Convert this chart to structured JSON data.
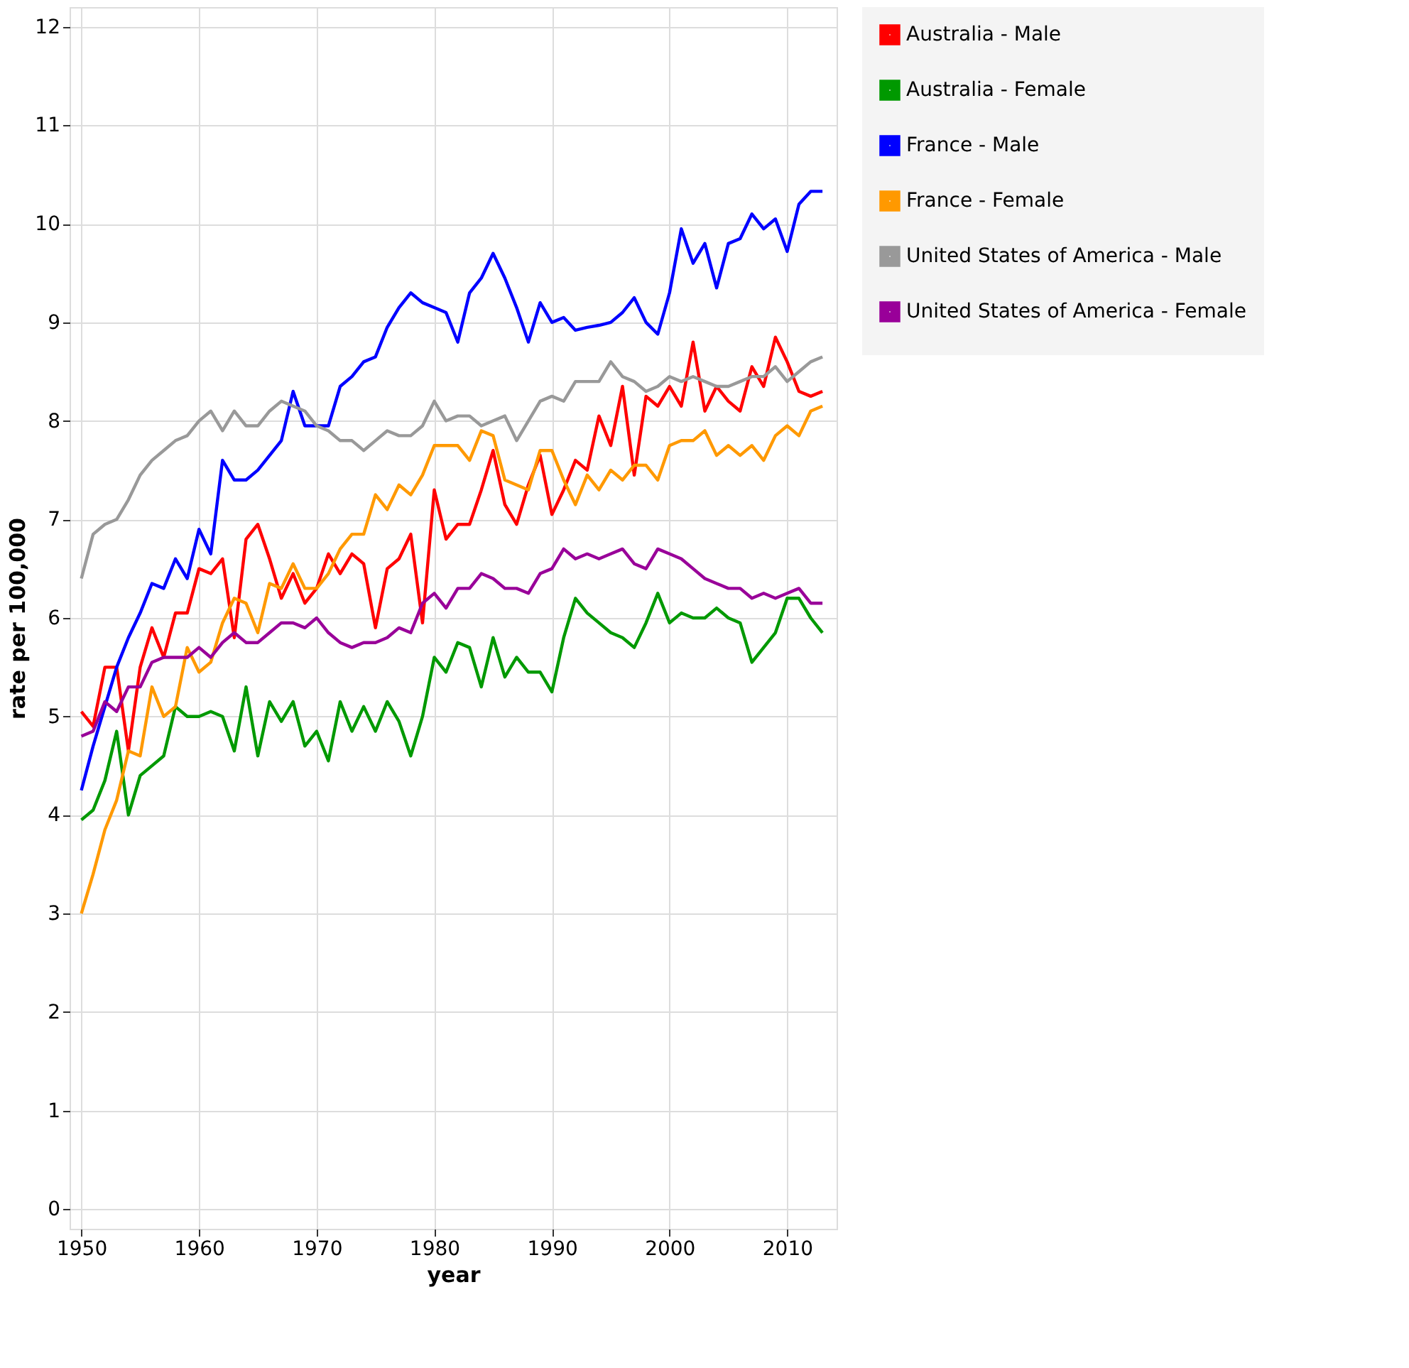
{
  "chart_data": {
    "type": "line",
    "xlabel": "year",
    "ylabel": "rate per 100,000",
    "x": [
      1950,
      1951,
      1952,
      1953,
      1954,
      1955,
      1956,
      1957,
      1958,
      1959,
      1960,
      1961,
      1962,
      1963,
      1964,
      1965,
      1966,
      1967,
      1968,
      1969,
      1970,
      1971,
      1972,
      1973,
      1974,
      1975,
      1976,
      1977,
      1978,
      1979,
      1980,
      1981,
      1982,
      1983,
      1984,
      1985,
      1986,
      1987,
      1988,
      1989,
      1990,
      1991,
      1992,
      1993,
      1994,
      1995,
      1996,
      1997,
      1998,
      1999,
      2000,
      2001,
      2002,
      2003,
      2004,
      2005,
      2006,
      2007,
      2008,
      2009,
      2010,
      2011,
      2012,
      2013
    ],
    "xlim": [
      1949,
      2014.2
    ],
    "xticks": [
      1950,
      1960,
      1970,
      1980,
      1990,
      2000,
      2010
    ],
    "ylim": [
      -0.2,
      12.2
    ],
    "yticks": [
      0,
      1,
      2,
      3,
      4,
      5,
      6,
      7,
      8,
      9,
      10,
      11,
      12
    ],
    "grid": true,
    "legend": "right",
    "line_style": "solid",
    "marker": "none",
    "series": [
      {
        "name": "Australia - Male",
        "color": "#ff0000",
        "values": [
          5.05,
          4.9,
          5.5,
          5.5,
          4.65,
          5.5,
          5.9,
          5.6,
          6.05,
          6.05,
          6.5,
          6.45,
          6.6,
          5.8,
          6.8,
          6.95,
          6.6,
          6.2,
          6.45,
          6.15,
          6.3,
          6.65,
          6.45,
          6.65,
          6.55,
          5.9,
          6.5,
          6.6,
          6.85,
          5.95,
          7.3,
          6.8,
          6.95,
          6.95,
          7.3,
          7.7,
          7.15,
          6.95,
          7.35,
          7.65,
          7.05,
          7.3,
          7.6,
          7.5,
          8.05,
          7.75,
          8.35,
          7.45,
          8.25,
          8.15,
          8.35,
          8.15,
          8.8,
          8.1,
          8.35,
          8.2,
          8.1,
          8.55,
          8.35,
          8.85,
          8.6,
          8.3,
          8.25,
          8.3
        ]
      },
      {
        "name": "Australia - Female",
        "color": "#009900",
        "values": [
          3.95,
          4.05,
          4.35,
          4.85,
          4.0,
          4.4,
          4.5,
          4.6,
          5.1,
          5.0,
          5.0,
          5.05,
          5.0,
          4.65,
          5.3,
          4.6,
          5.15,
          4.95,
          5.15,
          4.7,
          4.85,
          4.55,
          5.15,
          4.85,
          5.1,
          4.85,
          5.15,
          4.95,
          4.6,
          5.0,
          5.6,
          5.45,
          5.75,
          5.7,
          5.3,
          5.8,
          5.4,
          5.6,
          5.45,
          5.45,
          5.25,
          5.8,
          6.2,
          6.05,
          5.95,
          5.85,
          5.8,
          5.7,
          5.95,
          6.25,
          5.95,
          6.05,
          6.0,
          6.0,
          6.1,
          6.0,
          5.95,
          5.55,
          5.7,
          5.85,
          6.2,
          6.2,
          6.0,
          5.85
        ]
      },
      {
        "name": "France - Male",
        "color": "#0000ff",
        "values": [
          4.25,
          4.7,
          5.1,
          5.5,
          5.8,
          6.05,
          6.35,
          6.3,
          6.6,
          6.4,
          6.9,
          6.65,
          7.6,
          7.4,
          7.4,
          7.5,
          7.65,
          7.8,
          8.3,
          7.95,
          7.95,
          7.95,
          8.35,
          8.45,
          8.6,
          8.65,
          8.95,
          9.15,
          9.3,
          9.2,
          9.15,
          9.1,
          8.8,
          9.3,
          9.45,
          9.7,
          9.45,
          9.15,
          8.8,
          9.2,
          9.0,
          9.05,
          8.92,
          8.95,
          8.97,
          9.0,
          9.1,
          9.25,
          9.0,
          8.88,
          9.3,
          9.95,
          9.6,
          9.8,
          9.35,
          9.8,
          9.85,
          10.1,
          9.95,
          10.05,
          9.72,
          10.2,
          10.33,
          10.33
        ]
      },
      {
        "name": "France - Female",
        "color": "#ff9900",
        "values": [
          3.0,
          3.4,
          3.85,
          4.15,
          4.65,
          4.6,
          5.3,
          5.0,
          5.1,
          5.7,
          5.45,
          5.55,
          5.95,
          6.2,
          6.15,
          5.85,
          6.35,
          6.3,
          6.55,
          6.3,
          6.3,
          6.45,
          6.7,
          6.85,
          6.85,
          7.25,
          7.1,
          7.35,
          7.25,
          7.45,
          7.75,
          7.75,
          7.75,
          7.6,
          7.9,
          7.85,
          7.4,
          7.35,
          7.3,
          7.7,
          7.7,
          7.4,
          7.15,
          7.45,
          7.3,
          7.5,
          7.4,
          7.55,
          7.55,
          7.4,
          7.75,
          7.8,
          7.8,
          7.9,
          7.65,
          7.75,
          7.65,
          7.75,
          7.6,
          7.85,
          7.95,
          7.85,
          8.1,
          8.15
        ]
      },
      {
        "name": "United States of America - Male",
        "color": "#999999",
        "values": [
          6.4,
          6.85,
          6.95,
          7.0,
          7.2,
          7.45,
          7.6,
          7.7,
          7.8,
          7.85,
          8.0,
          8.1,
          7.9,
          8.1,
          7.95,
          7.95,
          8.1,
          8.2,
          8.15,
          8.1,
          7.95,
          7.9,
          7.8,
          7.8,
          7.7,
          7.8,
          7.9,
          7.85,
          7.85,
          7.95,
          8.2,
          8.0,
          8.05,
          8.05,
          7.95,
          8.0,
          8.05,
          7.8,
          8.0,
          8.2,
          8.25,
          8.2,
          8.4,
          8.4,
          8.4,
          8.6,
          8.45,
          8.4,
          8.3,
          8.35,
          8.45,
          8.4,
          8.45,
          8.4,
          8.35,
          8.35,
          8.4,
          8.45,
          8.45,
          8.55,
          8.4,
          8.5,
          8.6,
          8.65
        ]
      },
      {
        "name": "United States of America - Female",
        "color": "#990099",
        "values": [
          4.8,
          4.85,
          5.15,
          5.05,
          5.3,
          5.3,
          5.55,
          5.6,
          5.6,
          5.6,
          5.7,
          5.6,
          5.75,
          5.85,
          5.75,
          5.75,
          5.85,
          5.95,
          5.95,
          5.9,
          6.0,
          5.85,
          5.75,
          5.7,
          5.75,
          5.75,
          5.8,
          5.9,
          5.85,
          6.15,
          6.25,
          6.1,
          6.3,
          6.3,
          6.45,
          6.4,
          6.3,
          6.3,
          6.25,
          6.45,
          6.5,
          6.7,
          6.6,
          6.65,
          6.6,
          6.65,
          6.7,
          6.55,
          6.5,
          6.7,
          6.65,
          6.6,
          6.5,
          6.4,
          6.35,
          6.3,
          6.3,
          6.2,
          6.25,
          6.2,
          6.25,
          6.3,
          6.15,
          6.15
        ]
      }
    ]
  }
}
